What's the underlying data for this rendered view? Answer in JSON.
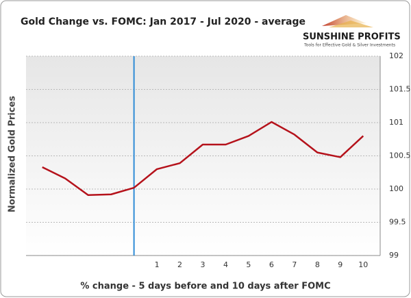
{
  "chart_data": {
    "type": "line",
    "title": "Gold Change vs. FOMC: Jan 2017 - Jul 2020 - average",
    "y_label": "Normalized Gold Prices",
    "x_label": "% change - 5 days before and 10 days after FOMC",
    "categories": [
      null,
      null,
      null,
      null,
      null,
      "1",
      "2",
      "3",
      "4",
      "5",
      "6",
      "7",
      "8",
      "9",
      "10"
    ],
    "series": [
      {
        "name": "Gold",
        "color": "#b5121b",
        "values": [
          100.33,
          100.16,
          99.91,
          99.92,
          100.02,
          100.3,
          100.39,
          100.67,
          100.67,
          100.8,
          101.01,
          100.82,
          100.55,
          100.48,
          100.8
        ]
      }
    ],
    "ylim": [
      99,
      102
    ],
    "yticks": [
      99,
      99.5,
      100,
      100.5,
      101,
      101.5,
      102
    ],
    "y_axis_side": "right",
    "grid": true,
    "marker_line": {
      "category_index": 4,
      "color": "#2e8bd6"
    }
  },
  "logo": {
    "name": "SUNSHINE PROFITS",
    "tagline": "Tools for Effective Gold & Silver Investments"
  }
}
